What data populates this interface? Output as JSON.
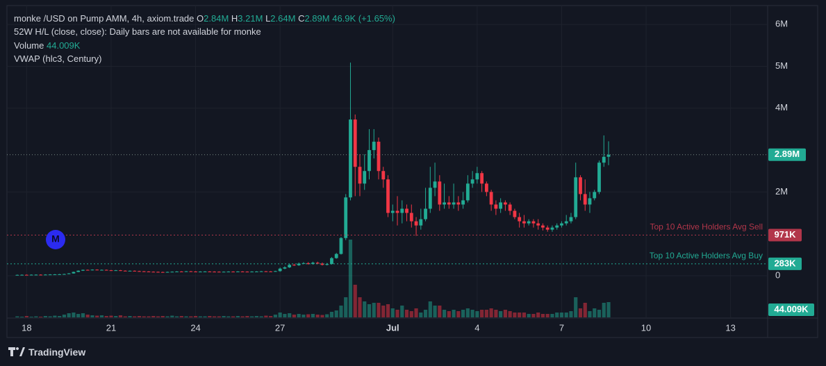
{
  "chart_data": {
    "type": "candlestick",
    "title": "monke /USD on Pump AMM, 4h, axiom.trade",
    "ohlc_legend": [
      {
        "key": "O",
        "label": "2.84M"
      },
      {
        "key": "H",
        "label": "3.21M"
      },
      {
        "key": "L",
        "label": "2.64M"
      },
      {
        "key": "C",
        "label": "2.89M"
      }
    ],
    "change_label": "46.9K (+1.65%)",
    "study_52w": "52W H/L (close, close): Daily bars are not available for monke",
    "study_vwap": "VWAP (hlc3, Century)",
    "up_color": "#22ab94",
    "down_color": "#f23645",
    "open": [
      18000,
      20000,
      22000,
      21000,
      24000,
      25000,
      24000,
      27000,
      30000,
      32000,
      35000,
      40000,
      55000,
      90000,
      120000,
      140000,
      130000,
      145000,
      135000,
      140000,
      130000,
      125000,
      130000,
      120000,
      115000,
      118000,
      110000,
      105000,
      100000,
      95000,
      92000,
      88000,
      85000,
      90000,
      95000,
      100000,
      98000,
      105000,
      100000,
      95000,
      98000,
      100000,
      97000,
      95000,
      92000,
      95000,
      98000,
      95000,
      100000,
      97000,
      95000,
      98000,
      100000,
      105000,
      102000,
      100000,
      110000,
      170000,
      200000,
      260000,
      250000,
      290000,
      300000,
      280000,
      310000,
      290000,
      260000,
      280000,
      420000,
      520000,
      900000,
      1870000,
      3730000,
      2600000,
      2200000,
      2500000,
      3000000,
      3200000,
      2500000,
      2300000,
      1500000,
      1550000,
      1500000,
      1600000,
      1500000,
      1300000,
      1200000,
      1350000,
      1600000,
      2100000,
      2250000,
      1700000,
      1750000,
      1700000,
      1750000,
      1700000,
      1800000,
      2200000,
      2300000,
      2450000,
      2200000,
      2000000,
      1700000,
      1600000,
      1750000,
      1700000,
      1550000,
      1400000,
      1300000,
      1250000,
      1300000,
      1250000,
      1200000,
      1150000,
      1100000,
      1150000,
      1200000,
      1250000,
      1300000,
      1400000,
      2350000,
      1950000,
      1700000,
      1850000,
      2000000,
      2700000,
      2840000
    ],
    "high": [
      28000,
      30000,
      30000,
      32000,
      33000,
      33000,
      35000,
      38000,
      40000,
      43000,
      48000,
      63000,
      98000,
      128000,
      148000,
      148000,
      153000,
      153000,
      148000,
      148000,
      138000,
      138000,
      138000,
      128000,
      126000,
      126000,
      118000,
      113000,
      108000,
      103000,
      100000,
      96000,
      98000,
      103000,
      108000,
      108000,
      113000,
      113000,
      108000,
      106000,
      108000,
      108000,
      105000,
      103000,
      103000,
      106000,
      106000,
      108000,
      108000,
      105000,
      106000,
      108000,
      113000,
      113000,
      110000,
      118000,
      195000,
      225000,
      285000,
      285000,
      315000,
      325000,
      325000,
      335000,
      335000,
      315000,
      305000,
      445000,
      545000,
      925000,
      1950000,
      5090000,
      3850000,
      2900000,
      2900000,
      3500000,
      3500000,
      3300000,
      2600000,
      2400000,
      1700000,
      1900000,
      1800000,
      1700000,
      1700000,
      1400000,
      1600000,
      2100000,
      2600000,
      2700000,
      2400000,
      2200000,
      1900000,
      2200000,
      1900000,
      2000000,
      2400000,
      2500000,
      2600000,
      2500000,
      2250000,
      2050000,
      1800000,
      1850000,
      1800000,
      1750000,
      1600000,
      1500000,
      1450000,
      1350000,
      1350000,
      1350000,
      1250000,
      1200000,
      1200000,
      1250000,
      1300000,
      1450000,
      1500000,
      2700000,
      2400000,
      2300000,
      2000000,
      2050000,
      2750000,
      3350000,
      3210000
    ],
    "low": [
      12000,
      14000,
      15000,
      15000,
      18000,
      18000,
      18000,
      21000,
      24000,
      26000,
      29000,
      34000,
      49000,
      84000,
      114000,
      124000,
      124000,
      129000,
      129000,
      124000,
      119000,
      119000,
      114000,
      109000,
      109000,
      104000,
      99000,
      94000,
      89000,
      86000,
      82000,
      79000,
      79000,
      84000,
      89000,
      92000,
      92000,
      94000,
      89000,
      89000,
      92000,
      91000,
      89000,
      86000,
      86000,
      89000,
      89000,
      89000,
      91000,
      89000,
      89000,
      92000,
      94000,
      96000,
      94000,
      94000,
      95000,
      155000,
      185000,
      235000,
      235000,
      275000,
      265000,
      265000,
      275000,
      245000,
      245000,
      265000,
      405000,
      505000,
      850000,
      1800000,
      1900000,
      1900000,
      2050000,
      2300000,
      2800000,
      2300000,
      2100000,
      1400000,
      1300000,
      1200000,
      1250000,
      1300000,
      1150000,
      950000,
      1100000,
      1300000,
      1500000,
      1900000,
      1550000,
      1600000,
      1600000,
      1600000,
      1550000,
      1600000,
      1750000,
      2100000,
      2200000,
      2000000,
      1900000,
      1550000,
      1450000,
      1500000,
      1550000,
      1450000,
      1350000,
      1150000,
      1150000,
      1200000,
      1150000,
      1100000,
      1080000,
      1050000,
      1050000,
      1100000,
      1150000,
      1200000,
      1250000,
      1350000,
      1800000,
      1550000,
      1500000,
      1800000,
      1950000,
      2600000,
      2640000
    ],
    "close": [
      20000,
      22000,
      21000,
      24000,
      25000,
      24000,
      27000,
      30000,
      32000,
      35000,
      40000,
      55000,
      90000,
      120000,
      140000,
      130000,
      145000,
      135000,
      140000,
      130000,
      125000,
      130000,
      120000,
      115000,
      118000,
      110000,
      105000,
      100000,
      95000,
      92000,
      88000,
      85000,
      90000,
      95000,
      100000,
      98000,
      105000,
      100000,
      95000,
      98000,
      100000,
      97000,
      95000,
      92000,
      95000,
      98000,
      95000,
      100000,
      97000,
      95000,
      98000,
      100000,
      105000,
      102000,
      100000,
      110000,
      170000,
      200000,
      260000,
      250000,
      290000,
      300000,
      280000,
      310000,
      290000,
      260000,
      280000,
      420000,
      520000,
      900000,
      1870000,
      3730000,
      2600000,
      2200000,
      2500000,
      3000000,
      3200000,
      2500000,
      2300000,
      1500000,
      1550000,
      1500000,
      1600000,
      1500000,
      1300000,
      1200000,
      1350000,
      1600000,
      2100000,
      2250000,
      1700000,
      1750000,
      1700000,
      1750000,
      1700000,
      1800000,
      2200000,
      2300000,
      2450000,
      2200000,
      2000000,
      1700000,
      1600000,
      1750000,
      1700000,
      1550000,
      1400000,
      1300000,
      1250000,
      1300000,
      1250000,
      1200000,
      1150000,
      1100000,
      1150000,
      1200000,
      1250000,
      1300000,
      1400000,
      2350000,
      1950000,
      1700000,
      1850000,
      2000000,
      2700000,
      2840000,
      2890000
    ],
    "volume": {
      "name": "Volume",
      "last_label": "44.009K",
      "values": [
        3000,
        2000,
        4000,
        2000,
        3000,
        2000,
        4000,
        3000,
        5000,
        4000,
        8000,
        12000,
        14000,
        10000,
        12000,
        8000,
        6000,
        5000,
        6000,
        4000,
        5000,
        4000,
        6000,
        3000,
        4000,
        3000,
        4000,
        3000,
        3000,
        4000,
        3000,
        4000,
        3000,
        5000,
        3000,
        4000,
        3000,
        3000,
        4000,
        3000,
        3000,
        4000,
        3000,
        3000,
        4000,
        3000,
        3000,
        4000,
        3000,
        4000,
        3000,
        4000,
        3000,
        5000,
        4000,
        8000,
        14000,
        10000,
        12000,
        8000,
        10000,
        8000,
        9000,
        10000,
        8000,
        7000,
        9000,
        16000,
        20000,
        34000,
        58000,
        224000,
        94000,
        58000,
        46000,
        38000,
        42000,
        42000,
        34000,
        38000,
        26000,
        22000,
        34000,
        22000,
        18000,
        26000,
        14000,
        22000,
        46000,
        34000,
        34000,
        22000,
        18000,
        22000,
        18000,
        22000,
        26000,
        22000,
        18000,
        22000,
        22000,
        26000,
        22000,
        18000,
        22000,
        18000,
        14000,
        14000,
        14000,
        10000,
        10000,
        14000,
        10000,
        10000,
        10000,
        14000,
        14000,
        14000,
        18000,
        58000,
        26000,
        42000,
        18000,
        26000,
        22000,
        42000,
        44009
      ]
    },
    "last_price_label": "2.89M",
    "levels": [
      {
        "name": "Top 10 Active Holders Avg Sell",
        "value": 971000,
        "label": "971K",
        "color": "#b2364a"
      },
      {
        "name": "Top 10 Active Holders Avg Buy",
        "value": 283000,
        "label": "283K",
        "color": "#22ab94"
      }
    ],
    "marker": "M",
    "ylim": [
      -995000,
      6418000
    ],
    "yticks": [
      0,
      {
        "value": 2000000,
        "label": "2M"
      },
      {
        "value": 4000000,
        "label": "4M"
      },
      {
        "value": 5000000,
        "label": "5M"
      },
      {
        "value": 6000000,
        "label": "6M"
      }
    ],
    "xlim": [
      -2.2,
      159.9
    ],
    "xticks": [
      {
        "value": 2,
        "label": "18"
      },
      {
        "value": 20,
        "label": "21"
      },
      {
        "value": 38,
        "label": "24"
      },
      {
        "value": 56,
        "label": "27"
      },
      {
        "value": 80,
        "label": "Jul"
      },
      {
        "value": 98,
        "label": "4"
      },
      {
        "value": 116,
        "label": "7"
      },
      {
        "value": 134,
        "label": "10"
      },
      {
        "value": 152,
        "label": "13"
      }
    ],
    "grid": true
  },
  "footer": {
    "brand": "TradingView"
  }
}
